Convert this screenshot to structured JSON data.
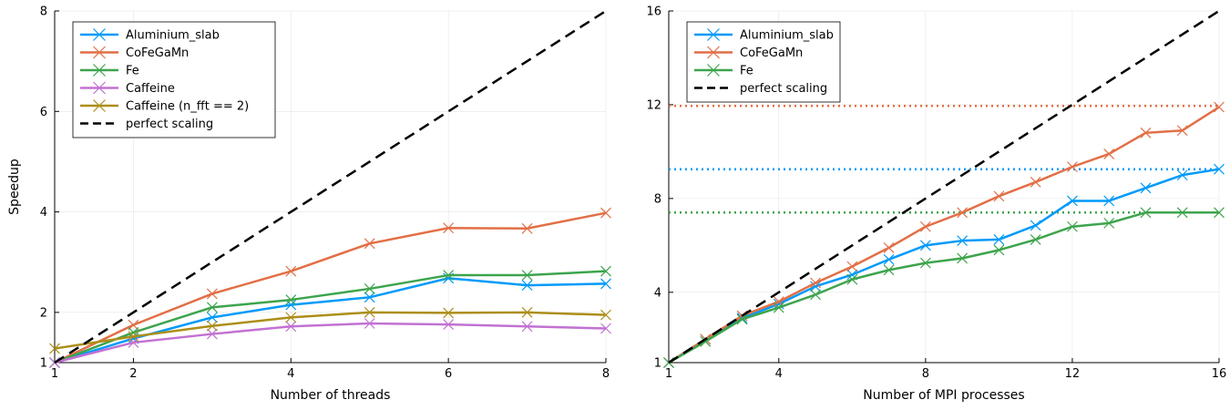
{
  "chart_data": [
    {
      "type": "line",
      "xlabel": "Number of threads",
      "ylabel": "Speedup",
      "xlim": [
        1,
        8
      ],
      "ylim": [
        1,
        8
      ],
      "xticks": [
        1,
        2,
        4,
        6,
        8
      ],
      "yticks": [
        1,
        2,
        4,
        6,
        8
      ],
      "grid": true,
      "legend": "top-left",
      "series": [
        {
          "name": "Aluminium_slab",
          "color": "#009af9",
          "x": [
            1,
            2,
            3,
            4,
            5,
            6,
            7,
            8
          ],
          "y": [
            1.0,
            1.48,
            1.9,
            2.15,
            2.3,
            2.68,
            2.54,
            2.57
          ]
        },
        {
          "name": "CoFeGaMn",
          "color": "#e26f46",
          "x": [
            1,
            2,
            3,
            4,
            5,
            6,
            7,
            8
          ],
          "y": [
            1.0,
            1.75,
            2.37,
            2.82,
            3.37,
            3.68,
            3.67,
            3.98
          ]
        },
        {
          "name": "Fe",
          "color": "#3da44d",
          "x": [
            1,
            2,
            3,
            4,
            5,
            6,
            7,
            8
          ],
          "y": [
            1.0,
            1.6,
            2.1,
            2.25,
            2.47,
            2.74,
            2.74,
            2.82
          ]
        },
        {
          "name": "Caffeine",
          "color": "#c271d2",
          "x": [
            1,
            2,
            3,
            4,
            5,
            6,
            7,
            8
          ],
          "y": [
            1.0,
            1.4,
            1.57,
            1.72,
            1.78,
            1.76,
            1.72,
            1.68
          ]
        },
        {
          "name": "Caffeine (n_fft == 2)",
          "color": "#ac8e18",
          "x": [
            1,
            2,
            3,
            4,
            5,
            6,
            7,
            8
          ],
          "y": [
            1.28,
            1.52,
            1.73,
            1.9,
            2.0,
            1.99,
            2.0,
            1.95
          ]
        },
        {
          "name": "perfect scaling",
          "color": "#000000",
          "dashed": true,
          "x": [
            1,
            8
          ],
          "y": [
            1,
            8
          ]
        }
      ]
    },
    {
      "type": "line",
      "xlabel": "Number of MPI processes",
      "ylabel": "",
      "xlim": [
        1,
        16
      ],
      "ylim": [
        1,
        16
      ],
      "xticks": [
        1,
        4,
        8,
        12,
        16
      ],
      "yticks": [
        1,
        4,
        8,
        12,
        16
      ],
      "grid": true,
      "legend": "top-left",
      "series": [
        {
          "name": "Aluminium_slab",
          "color": "#009af9",
          "x": [
            1,
            2,
            3,
            4,
            5,
            6,
            7,
            8,
            9,
            10,
            11,
            12,
            13,
            14,
            15,
            16
          ],
          "y": [
            1.0,
            2.0,
            2.9,
            3.5,
            4.25,
            4.75,
            5.4,
            6.0,
            6.2,
            6.25,
            6.85,
            7.9,
            7.9,
            8.45,
            9.0,
            9.25
          ]
        },
        {
          "name": "CoFeGaMn",
          "color": "#e26f46",
          "x": [
            1,
            2,
            3,
            4,
            5,
            6,
            7,
            8,
            9,
            10,
            11,
            12,
            13,
            14,
            15,
            16
          ],
          "y": [
            1.0,
            2.0,
            3.0,
            3.6,
            4.4,
            5.1,
            5.9,
            6.8,
            7.4,
            8.1,
            8.7,
            9.35,
            9.9,
            10.8,
            10.9,
            11.9
          ]
        },
        {
          "name": "Fe",
          "color": "#3da44d",
          "x": [
            1,
            2,
            3,
            4,
            5,
            6,
            7,
            8,
            9,
            10,
            11,
            12,
            13,
            14,
            15,
            16
          ],
          "y": [
            1.0,
            1.9,
            2.85,
            3.35,
            3.9,
            4.55,
            4.95,
            5.25,
            5.45,
            5.8,
            6.25,
            6.8,
            6.95,
            7.4,
            7.4,
            7.4
          ]
        },
        {
          "name": "perfect scaling",
          "color": "#000000",
          "dashed": true,
          "x": [
            1,
            16
          ],
          "y": [
            1,
            16
          ]
        }
      ],
      "reference_lines": [
        {
          "color": "#e26f46",
          "y": 11.95
        },
        {
          "color": "#009af9",
          "y": 9.25
        },
        {
          "color": "#3da44d",
          "y": 7.4
        }
      ]
    }
  ]
}
